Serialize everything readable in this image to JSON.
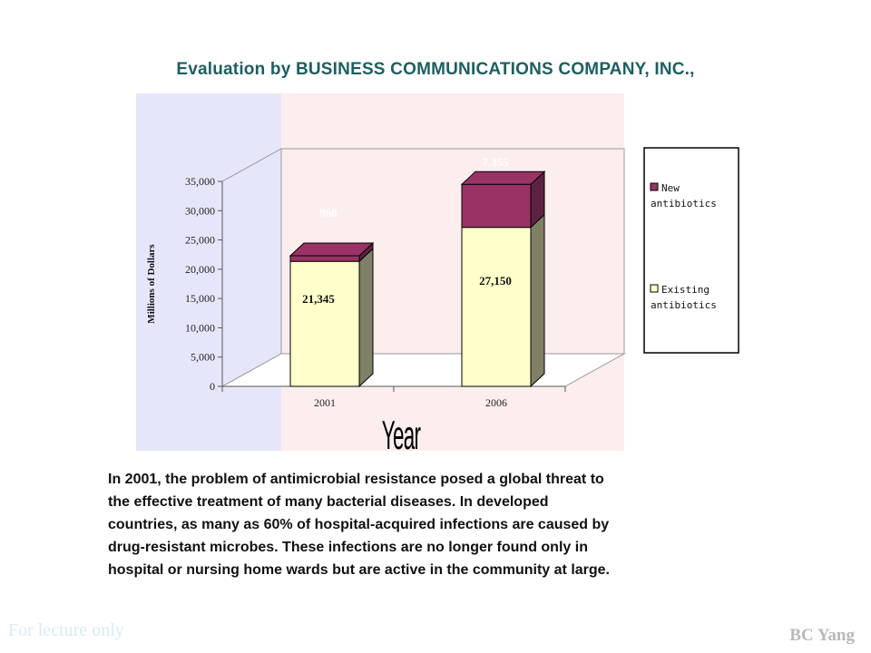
{
  "heading": "Evaluation by BUSINESS COMMUNICATIONS COMPANY, INC.,",
  "chart_data": {
    "type": "bar",
    "stacked": true,
    "three_d": true,
    "categories": [
      "2001",
      "2006"
    ],
    "series": [
      {
        "name": "Existing antibiotics",
        "values": [
          21345,
          27150
        ],
        "labels": [
          "21,345",
          "27,150"
        ],
        "color": "#ffffcc"
      },
      {
        "name": "New antibiotics",
        "values": [
          960,
          7355
        ],
        "labels": [
          "960",
          "7,355"
        ],
        "color": "#993366"
      }
    ],
    "legend": [
      {
        "lines": [
          "New",
          "antibiotics"
        ],
        "color": "#993366"
      },
      {
        "lines": [
          "Existing",
          "antibiotics"
        ],
        "color": "#ffffcc"
      }
    ],
    "legend_position": "right",
    "ylabel": "Millions of Dollars",
    "xlabel": "Year",
    "ylim": [
      0,
      35000
    ],
    "yticks": [
      0,
      5000,
      10000,
      15000,
      20000,
      25000,
      30000,
      35000
    ],
    "ytick_labels": [
      "0",
      "5,000",
      "10,000",
      "15,000",
      "20,000",
      "25,000",
      "30,000",
      "35,000"
    ],
    "grid": false,
    "colors": {
      "back_wall": "#fdeeee",
      "side_wall": "#e6e6fb",
      "bar_side": "#808066",
      "new_dark": "#5c2242",
      "axis": "#555555"
    }
  },
  "paragraph": [
    "In 2001, the problem of antimicrobial resistance posed a global threat to",
    "the effective treatment of many bacterial diseases. In developed",
    "countries, as many as 60% of hospital-acquired infections are caused by",
    "drug-resistant microbes. These infections are no longer found only in",
    "hospital or nursing home wards but are active in the community at large."
  ],
  "footer": {
    "left": "For lecture only",
    "right": "BC Yang"
  }
}
